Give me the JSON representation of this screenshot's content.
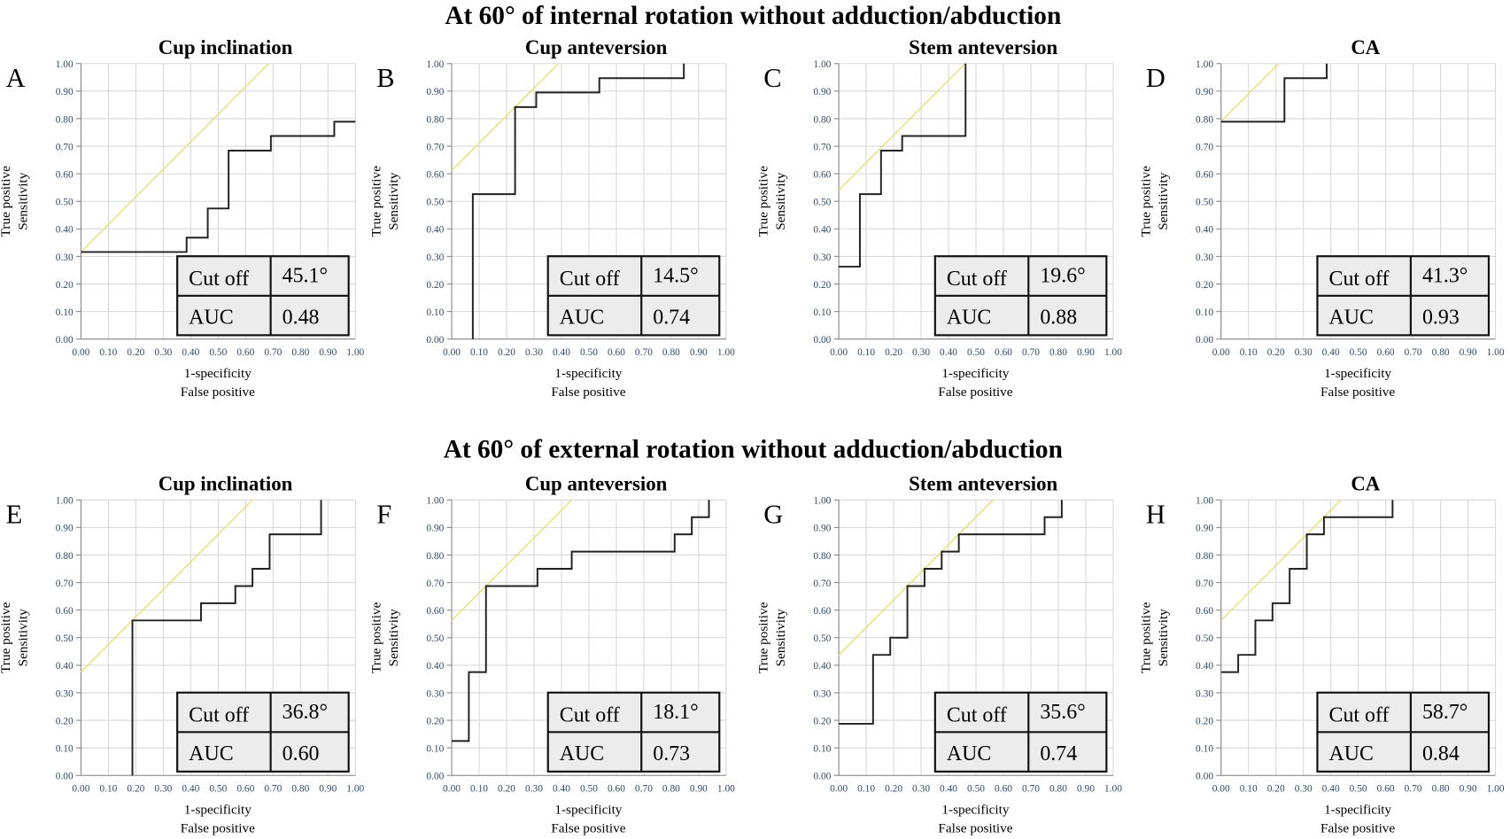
{
  "rows": [
    {
      "title": "At 60° of internal rotation without adduction/abduction"
    },
    {
      "title": "At 60° of external rotation without adduction/abduction"
    }
  ],
  "axis": {
    "ylabel_line1": "True positive",
    "ylabel_line2": "Sensitivity",
    "xlabel_line1": "1-specificity",
    "xlabel_line2": "False positive",
    "ticks": [
      "0.00",
      "0.10",
      "0.20",
      "0.30",
      "0.40",
      "0.50",
      "0.60",
      "0.70",
      "0.80",
      "0.90",
      "1.00"
    ]
  },
  "table_labels": {
    "cutoff": "Cut off",
    "auc": "AUC"
  },
  "colors": {
    "curve": "#222222",
    "reference": "#e8e070",
    "grid": "#d8d8d8"
  },
  "chart_data": [
    {
      "type": "line",
      "panel": "A",
      "title": "Cup inclination",
      "cutoff": "45.1°",
      "auc": "0.48",
      "xlim": [
        0,
        1
      ],
      "ylim": [
        0,
        1
      ],
      "grid": true,
      "reference_line_intercept": 0.316,
      "points": [
        [
          0,
          0.316
        ],
        [
          0.385,
          0.316
        ],
        [
          0.385,
          0.368
        ],
        [
          0.462,
          0.368
        ],
        [
          0.462,
          0.474
        ],
        [
          0.538,
          0.474
        ],
        [
          0.538,
          0.684
        ],
        [
          0.692,
          0.684
        ],
        [
          0.692,
          0.737
        ],
        [
          0.923,
          0.737
        ],
        [
          0.923,
          0.789
        ],
        [
          1,
          0.789
        ]
      ]
    },
    {
      "type": "line",
      "panel": "B",
      "title": "Cup anteversion",
      "cutoff": "14.5°",
      "auc": "0.74",
      "xlim": [
        0,
        1
      ],
      "ylim": [
        0,
        1
      ],
      "grid": true,
      "reference_line_intercept": 0.611,
      "points": [
        [
          0.077,
          0
        ],
        [
          0.077,
          0.526
        ],
        [
          0.231,
          0.526
        ],
        [
          0.231,
          0.842
        ],
        [
          0.308,
          0.842
        ],
        [
          0.308,
          0.895
        ],
        [
          0.538,
          0.895
        ],
        [
          0.538,
          0.947
        ],
        [
          0.846,
          0.947
        ],
        [
          0.846,
          1
        ]
      ]
    },
    {
      "type": "line",
      "panel": "C",
      "title": "Stem anteversion",
      "cutoff": "19.6°",
      "auc": "0.88",
      "xlim": [
        0,
        1
      ],
      "ylim": [
        0,
        1
      ],
      "grid": true,
      "reference_line_intercept": 0.54,
      "points": [
        [
          0,
          0.263
        ],
        [
          0.077,
          0.263
        ],
        [
          0.077,
          0.526
        ],
        [
          0.154,
          0.526
        ],
        [
          0.154,
          0.684
        ],
        [
          0.231,
          0.684
        ],
        [
          0.231,
          0.737
        ],
        [
          0.462,
          0.737
        ],
        [
          0.462,
          1
        ]
      ]
    },
    {
      "type": "line",
      "panel": "D",
      "title": "CA",
      "cutoff": "41.3°",
      "auc": "0.93",
      "xlim": [
        0,
        1
      ],
      "ylim": [
        0,
        1
      ],
      "grid": true,
      "reference_line_intercept": 0.79,
      "points": [
        [
          0,
          0.789
        ],
        [
          0.231,
          0.789
        ],
        [
          0.231,
          0.947
        ],
        [
          0.385,
          0.947
        ],
        [
          0.385,
          1
        ]
      ]
    },
    {
      "type": "line",
      "panel": "E",
      "title": "Cup inclination",
      "cutoff": "36.8°",
      "auc": "0.60",
      "xlim": [
        0,
        1
      ],
      "ylim": [
        0,
        1
      ],
      "grid": true,
      "reference_line_intercept": 0.375,
      "points": [
        [
          0.1875,
          0
        ],
        [
          0.1875,
          0.5625
        ],
        [
          0.4375,
          0.5625
        ],
        [
          0.4375,
          0.625
        ],
        [
          0.5625,
          0.625
        ],
        [
          0.5625,
          0.6875
        ],
        [
          0.625,
          0.6875
        ],
        [
          0.625,
          0.75
        ],
        [
          0.6875,
          0.75
        ],
        [
          0.6875,
          0.875
        ],
        [
          0.875,
          0.875
        ],
        [
          0.875,
          1
        ]
      ]
    },
    {
      "type": "line",
      "panel": "F",
      "title": "Cup anteversion",
      "cutoff": "18.1°",
      "auc": "0.73",
      "xlim": [
        0,
        1
      ],
      "ylim": [
        0,
        1
      ],
      "grid": true,
      "reference_line_intercept": 0.5625,
      "points": [
        [
          0,
          0.125
        ],
        [
          0.0625,
          0.125
        ],
        [
          0.0625,
          0.375
        ],
        [
          0.125,
          0.375
        ],
        [
          0.125,
          0.6875
        ],
        [
          0.3125,
          0.6875
        ],
        [
          0.3125,
          0.75
        ],
        [
          0.4375,
          0.75
        ],
        [
          0.4375,
          0.8125
        ],
        [
          0.8125,
          0.8125
        ],
        [
          0.8125,
          0.875
        ],
        [
          0.875,
          0.875
        ],
        [
          0.875,
          0.9375
        ],
        [
          0.9375,
          0.9375
        ],
        [
          0.9375,
          1
        ]
      ]
    },
    {
      "type": "line",
      "panel": "G",
      "title": "Stem anteversion",
      "cutoff": "35.6°",
      "auc": "0.74",
      "xlim": [
        0,
        1
      ],
      "ylim": [
        0,
        1
      ],
      "grid": true,
      "reference_line_intercept": 0.4375,
      "points": [
        [
          0,
          0.1875
        ],
        [
          0.125,
          0.1875
        ],
        [
          0.125,
          0.4375
        ],
        [
          0.1875,
          0.4375
        ],
        [
          0.1875,
          0.5
        ],
        [
          0.25,
          0.5
        ],
        [
          0.25,
          0.6875
        ],
        [
          0.3125,
          0.6875
        ],
        [
          0.3125,
          0.75
        ],
        [
          0.375,
          0.75
        ],
        [
          0.375,
          0.8125
        ],
        [
          0.4375,
          0.8125
        ],
        [
          0.4375,
          0.875
        ],
        [
          0.75,
          0.875
        ],
        [
          0.75,
          0.9375
        ],
        [
          0.8125,
          0.9375
        ],
        [
          0.8125,
          1
        ]
      ]
    },
    {
      "type": "line",
      "panel": "H",
      "title": "CA",
      "cutoff": "58.7°",
      "auc": "0.84",
      "xlim": [
        0,
        1
      ],
      "ylim": [
        0,
        1
      ],
      "grid": true,
      "reference_line_intercept": 0.5625,
      "points": [
        [
          0,
          0.375
        ],
        [
          0.0625,
          0.375
        ],
        [
          0.0625,
          0.4375
        ],
        [
          0.125,
          0.4375
        ],
        [
          0.125,
          0.5625
        ],
        [
          0.1875,
          0.5625
        ],
        [
          0.1875,
          0.625
        ],
        [
          0.25,
          0.625
        ],
        [
          0.25,
          0.75
        ],
        [
          0.3125,
          0.75
        ],
        [
          0.3125,
          0.875
        ],
        [
          0.375,
          0.875
        ],
        [
          0.375,
          0.9375
        ],
        [
          0.625,
          0.9375
        ],
        [
          0.625,
          1
        ]
      ]
    }
  ]
}
